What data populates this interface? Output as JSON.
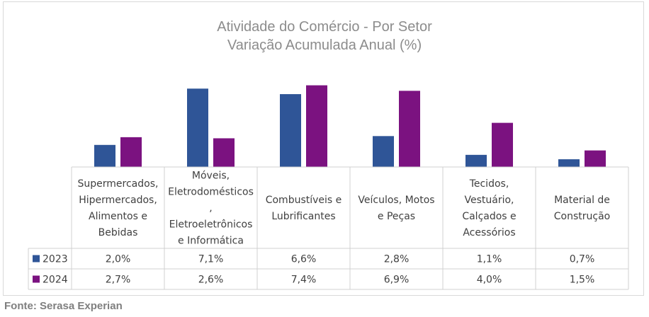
{
  "chart_data": {
    "type": "bar",
    "title": "Atividade do Comércio - Por Setor",
    "subtitle": "Variação Acumulada Anual (%)",
    "categories": [
      [
        "Supermercados,",
        "Hipermercados,",
        "Alimentos e",
        "Bebidas"
      ],
      [
        "Móveis,",
        "Eletrodomésticos",
        ",",
        "Eletroeletrônicos",
        "e Informática"
      ],
      [
        "Combustíveis e",
        "Lubrificantes"
      ],
      [
        "Veículos, Motos",
        "e Peças"
      ],
      [
        "Tecidos,",
        "Vestuário,",
        "Calçados e",
        "Acessórios"
      ],
      [
        "Material de",
        "Construção"
      ]
    ],
    "series": [
      {
        "name": "2023",
        "color": "#2f5597",
        "values": [
          2.0,
          7.1,
          6.6,
          2.8,
          1.1,
          0.7
        ],
        "labels": [
          "2,0%",
          "7,1%",
          "6,6%",
          "2,8%",
          "1,1%",
          "0,7%"
        ]
      },
      {
        "name": "2024",
        "color": "#7b1280",
        "values": [
          2.7,
          2.6,
          7.4,
          6.9,
          4.0,
          1.5
        ],
        "labels": [
          "2,7%",
          "2,6%",
          "7,4%",
          "6,9%",
          "4,0%",
          "1,5%"
        ]
      }
    ],
    "ylim": [
      0,
      8
    ],
    "legend": "data-table",
    "grid": false
  },
  "source": "Fonte: Serasa Experian"
}
